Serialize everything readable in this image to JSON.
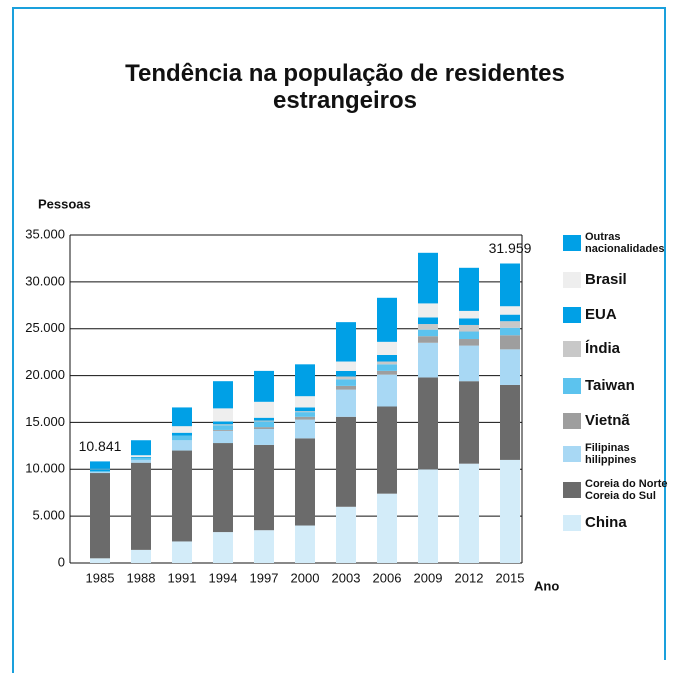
{
  "chart_data": {
    "type": "stacked_bar",
    "title": "Tendência na população de residentes\nestrangeiros",
    "y_label": "Pessoas",
    "x_label": "Ano",
    "categories": [
      "1985",
      "1988",
      "1991",
      "1994",
      "1997",
      "2000",
      "2003",
      "2006",
      "2009",
      "2012",
      "2015"
    ],
    "series": [
      {
        "name": "China",
        "color": "#d3ecf9",
        "values": [
          500,
          1400,
          2300,
          3300,
          3500,
          4000,
          6000,
          7400,
          10000,
          10600,
          11000
        ]
      },
      {
        "name": "Coreia do Norte\nCoreia do Sul",
        "color": "#6b6b6b",
        "values": [
          9100,
          9300,
          9700,
          9500,
          9100,
          9300,
          9600,
          9300,
          9800,
          8800,
          8000
        ]
      },
      {
        "name": "Filipinas\nhilippines",
        "color": "#a8d8f4",
        "values": [
          100,
          300,
          1100,
          1300,
          1700,
          2000,
          2900,
          3400,
          3700,
          3800,
          3800
        ]
      },
      {
        "name": "Vietnã",
        "color": "#9e9e9e",
        "values": [
          0,
          0,
          0,
          100,
          200,
          300,
          400,
          400,
          700,
          700,
          1500
        ]
      },
      {
        "name": "Taiwan",
        "color": "#5cc3ee",
        "values": [
          100,
          200,
          500,
          500,
          600,
          500,
          700,
          700,
          700,
          800,
          800
        ]
      },
      {
        "name": "Índia",
        "color": "#c8c8c8",
        "values": [
          0,
          0,
          0,
          100,
          100,
          100,
          300,
          300,
          600,
          700,
          700
        ]
      },
      {
        "name": "EUA",
        "color": "#00a0e6",
        "values": [
          200,
          100,
          300,
          300,
          300,
          400,
          600,
          700,
          700,
          700,
          700
        ]
      },
      {
        "name": "Brasil",
        "color": "#eeeeee",
        "values": [
          50,
          200,
          700,
          1400,
          1700,
          1200,
          1000,
          1400,
          1500,
          800,
          900
        ]
      },
      {
        "name": "Outras\nnacionalidades",
        "color": "#00a0e6",
        "values": [
          791,
          1600,
          2000,
          2900,
          3300,
          3400,
          4200,
          4700,
          5400,
          4600,
          4559
        ]
      }
    ],
    "annotations": [
      {
        "text": "10.841",
        "category": "1985"
      },
      {
        "text": "31.959",
        "category": "2015"
      }
    ],
    "ylim": [
      0,
      35000
    ],
    "yticks": [
      0,
      {
        "value": 5000,
        "label": "5.000"
      },
      {
        "value": 10000,
        "label": "10.000"
      },
      {
        "value": 15000,
        "label": "15.000"
      },
      {
        "value": 20000,
        "label": "20.000"
      },
      {
        "value": 25000,
        "label": "25.000"
      },
      {
        "value": 30000,
        "label": "30.000"
      },
      {
        "value": 35000,
        "label": "35.000"
      }
    ],
    "grid": true
  }
}
